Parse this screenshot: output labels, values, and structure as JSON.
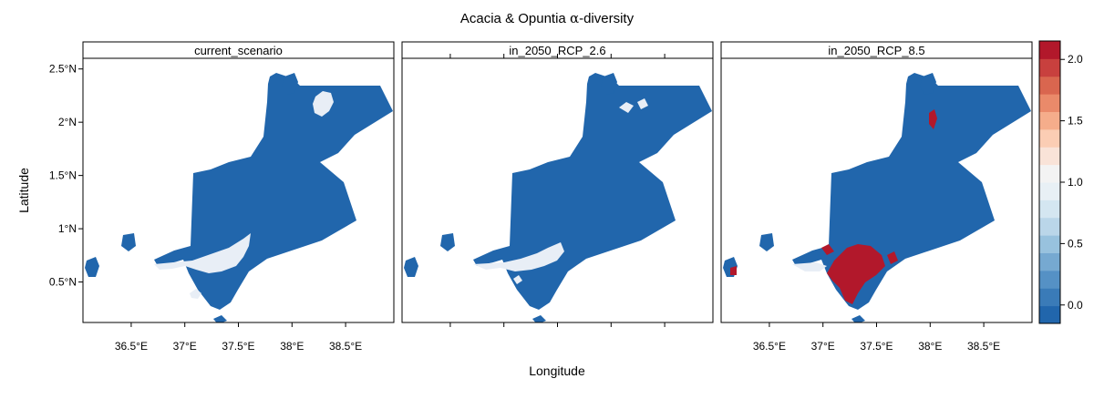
{
  "figure": {
    "title_text": "Acacia & Opuntia ",
    "title_symbol": "α",
    "title_suffix": "-diversity",
    "xlabel": "Longitude",
    "ylabel": "Latitude"
  },
  "panels": [
    {
      "name": "current_scenario"
    },
    {
      "name": "in_2050_RCP_2.6"
    },
    {
      "name": "in_2050_RCP_8.5"
    }
  ],
  "axes": {
    "x_ticks": [
      {
        "value": 36.5,
        "label": "36.5°E"
      },
      {
        "value": 37.0,
        "label": "37°E"
      },
      {
        "value": 37.5,
        "label": "37.5°E"
      },
      {
        "value": 38.0,
        "label": "38°E"
      },
      {
        "value": 38.5,
        "label": "38.5°E"
      }
    ],
    "y_ticks": [
      {
        "value": 0.5,
        "label": "0.5°N"
      },
      {
        "value": 1.0,
        "label": "1°N"
      },
      {
        "value": 1.5,
        "label": "1.5°N"
      },
      {
        "value": 2.0,
        "label": "2°N"
      },
      {
        "value": 2.5,
        "label": "2.5°N"
      }
    ],
    "xlim": [
      36.05,
      38.95
    ],
    "ylim": [
      0.12,
      2.6
    ]
  },
  "colorbar": {
    "ticks": [
      {
        "value": 0.0,
        "label": "0.0"
      },
      {
        "value": 0.5,
        "label": "0.5"
      },
      {
        "value": 1.0,
        "label": "1.0"
      },
      {
        "value": 1.5,
        "label": "1.5"
      },
      {
        "value": 2.0,
        "label": "2.0"
      }
    ],
    "range": [
      -0.15,
      2.15
    ],
    "colors": [
      "#2166ac",
      "#3a7bb8",
      "#5591c5",
      "#76a9d1",
      "#98c2de",
      "#bad6e9",
      "#d4e6f1",
      "#e8f0f5",
      "#f3f3f3",
      "#f9e3d8",
      "#fbcdb4",
      "#f5ad8b",
      "#ea8a6a",
      "#d9664f",
      "#c8403e",
      "#b2182b"
    ]
  },
  "colors": {
    "low": "#2166ac",
    "mid": "#e6eef5",
    "high": "#b2182b"
  }
}
